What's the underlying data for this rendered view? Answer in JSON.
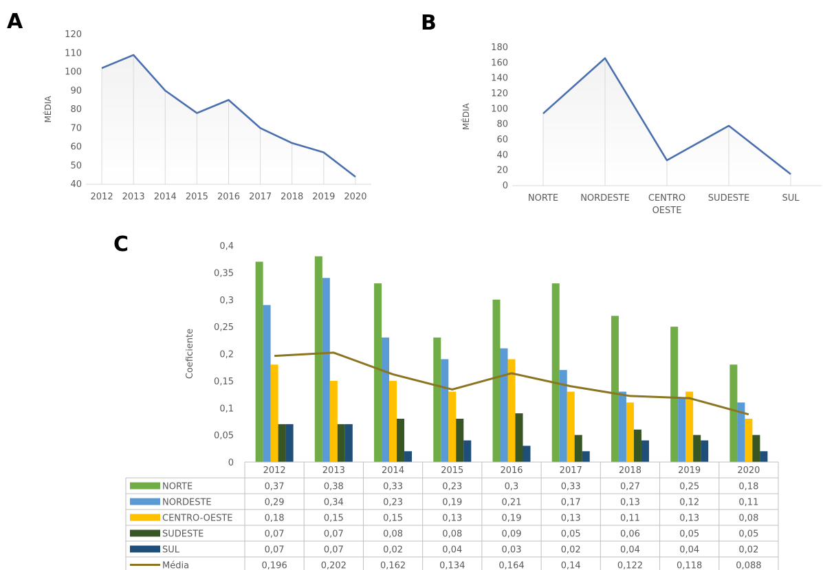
{
  "panel_labels": {
    "a": "A",
    "b": "B",
    "c": "C"
  },
  "colors": {
    "line": "#4a6faf",
    "grid": "#d9d9d9",
    "NORTE": "#70ad47",
    "NORDESTE": "#5b9bd5",
    "CENTRO-OESTE": "#ffc000",
    "SUDESTE": "#375623",
    "SUL": "#1f4e79",
    "Media": "#8b7520"
  },
  "chart_data": [
    {
      "id": "A",
      "type": "line",
      "x": [
        "2012",
        "2013",
        "2014",
        "2015",
        "2016",
        "2017",
        "2018",
        "2019",
        "2020"
      ],
      "values": [
        102,
        109,
        90,
        78,
        85,
        70,
        62,
        57,
        44
      ],
      "ylabel": "MÉDIA",
      "ylim": [
        40,
        120
      ],
      "yticks": [
        "40",
        "50",
        "60",
        "70",
        "80",
        "90",
        "100",
        "110",
        "120"
      ],
      "grid": "vertical"
    },
    {
      "id": "B",
      "type": "line",
      "categories": [
        "NORTE",
        "NORDESTE",
        "CENTRO OESTE",
        "SUDESTE",
        "SUL"
      ],
      "category_lines": [
        [
          "NORTE"
        ],
        [
          "NORDESTE"
        ],
        [
          "CENTRO",
          "OESTE"
        ],
        [
          "SUDESTE"
        ],
        [
          "SUL"
        ]
      ],
      "values": [
        94,
        166,
        33,
        78,
        15
      ],
      "ylabel": "MÉDIA",
      "ylim": [
        0,
        180
      ],
      "yticks": [
        "0",
        "20",
        "40",
        "60",
        "80",
        "100",
        "120",
        "140",
        "160",
        "180"
      ],
      "grid": "vertical"
    },
    {
      "id": "C",
      "type": "bar",
      "categories": [
        "2012",
        "2013",
        "2014",
        "2015",
        "2016",
        "2017",
        "2018",
        "2019",
        "2020"
      ],
      "ylabel": "Coeficiente",
      "ylim": [
        0,
        0.4
      ],
      "yticks": [
        "0",
        "0,05",
        "0,1",
        "0,15",
        "0,2",
        "0,25",
        "0,3",
        "0,35",
        "0,4"
      ],
      "series": [
        {
          "name": "NORTE",
          "values": [
            0.37,
            0.38,
            0.33,
            0.23,
            0.3,
            0.33,
            0.27,
            0.25,
            0.18
          ],
          "labels": [
            "0,37",
            "0,38",
            "0,33",
            "0,23",
            "0,3",
            "0,33",
            "0,27",
            "0,25",
            "0,18"
          ]
        },
        {
          "name": "NORDESTE",
          "values": [
            0.29,
            0.34,
            0.23,
            0.19,
            0.21,
            0.17,
            0.13,
            0.12,
            0.11
          ],
          "labels": [
            "0,29",
            "0,34",
            "0,23",
            "0,19",
            "0,21",
            "0,17",
            "0,13",
            "0,12",
            "0,11"
          ]
        },
        {
          "name": "CENTRO-OESTE",
          "values": [
            0.18,
            0.15,
            0.15,
            0.13,
            0.19,
            0.13,
            0.11,
            0.13,
            0.08
          ],
          "labels": [
            "0,18",
            "0,15",
            "0,15",
            "0,13",
            "0,19",
            "0,13",
            "0,11",
            "0,13",
            "0,08"
          ]
        },
        {
          "name": "SUDESTE",
          "values": [
            0.07,
            0.07,
            0.08,
            0.08,
            0.09,
            0.05,
            0.06,
            0.05,
            0.05
          ],
          "labels": [
            "0,07",
            "0,07",
            "0,08",
            "0,08",
            "0,09",
            "0,05",
            "0,06",
            "0,05",
            "0,05"
          ]
        },
        {
          "name": "SUL",
          "values": [
            0.07,
            0.07,
            0.02,
            0.04,
            0.03,
            0.02,
            0.04,
            0.04,
            0.02
          ],
          "labels": [
            "0,07",
            "0,07",
            "0,02",
            "0,04",
            "0,03",
            "0,02",
            "0,04",
            "0,04",
            "0,02"
          ]
        }
      ],
      "line_series": {
        "name": "Média",
        "values": [
          0.196,
          0.202,
          0.162,
          0.134,
          0.164,
          0.14,
          0.122,
          0.118,
          0.088
        ],
        "labels": [
          "0,196",
          "0,202",
          "0,162",
          "0,134",
          "0,164",
          "0,14",
          "0,122",
          "0,118",
          "0,088"
        ]
      },
      "data_table": true
    }
  ]
}
